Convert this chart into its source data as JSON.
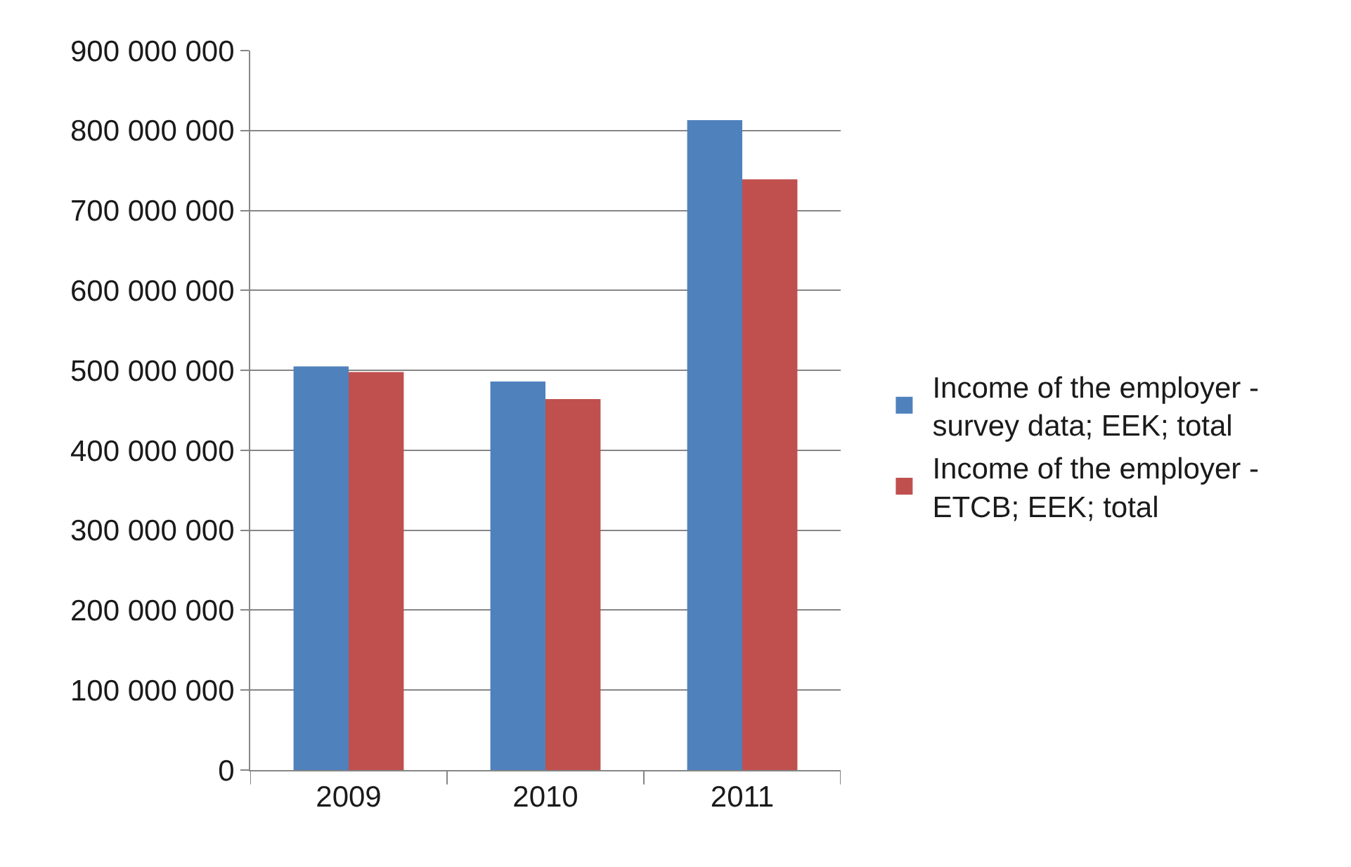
{
  "chart_data": {
    "type": "bar",
    "categories": [
      "2009",
      "2010",
      "2011"
    ],
    "series": [
      {
        "name": "Income of the employer - survey data; EEK; total",
        "color": "#4f81bd",
        "values": [
          505000000,
          486000000,
          813000000
        ]
      },
      {
        "name": "Income of the employer - ETCB; EEK; total",
        "color": "#c0504d",
        "values": [
          498000000,
          464000000,
          739000000
        ]
      }
    ],
    "ylim": [
      0,
      900000000
    ],
    "yticks": [
      0,
      {
        "value": 100000000,
        "label": "100 000 000"
      },
      {
        "value": 200000000,
        "label": "200 000 000"
      },
      {
        "value": 300000000,
        "label": "300 000 000"
      },
      {
        "value": 400000000,
        "label": "400 000 000"
      },
      {
        "value": 500000000,
        "label": "500 000 000"
      },
      {
        "value": 600000000,
        "label": "600 000 000"
      },
      {
        "value": 700000000,
        "label": "700 000 000"
      },
      {
        "value": 800000000,
        "label": "800 000 000"
      },
      {
        "value": 900000000,
        "label": "900 000 000"
      }
    ],
    "grid": "y",
    "legend": "right"
  }
}
